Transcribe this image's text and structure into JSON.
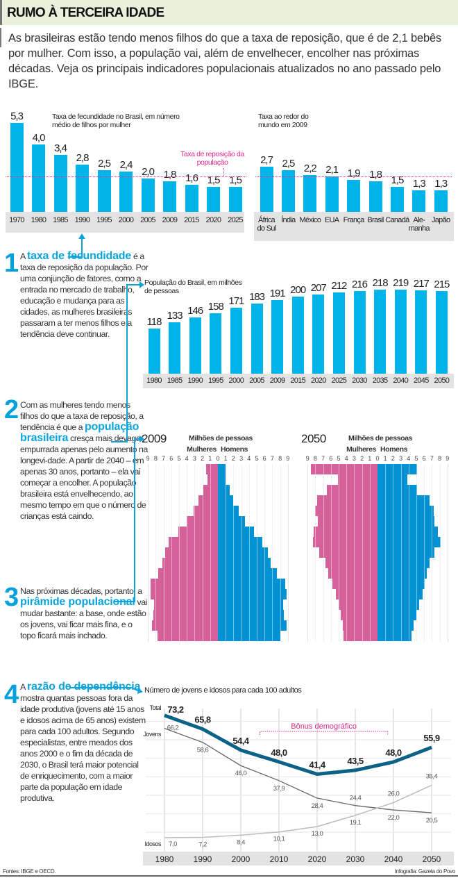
{
  "header": {
    "title": "RUMO À TERCEIRA IDADE"
  },
  "intro": "As brasileiras estão tendo menos filhos do que a taxa de reposição, que é de 2,1 bebês por mulher. Com isso, a população vai, além de envelhecer, encolher nas próximas décadas. Veja os principais indicadores populacionais atualizados no ano passado pelo IBGE.",
  "texts": [
    {
      "number": "1",
      "prefix": "A ",
      "highlight": "taxa de fecundidade",
      "rest": " é a taxa de reposição da população. Por uma conjunção de fatores, como a entrada no mercado de trabalho, educação e mudança para as cidades, as mulheres brasileiras passaram a ter menos filhos e a tendência deve continuar."
    },
    {
      "number": "2",
      "prefix": "Com as mulheres tendo menos filhos do que a taxa de reposição, a tendência é que a ",
      "highlight": "população brasileira",
      "rest": " cresça mais devagar, empurrada apenas pelo aumento na longevi-dade. A partir de 2040 – em apenas 30 anos, portanto – ela vai começar a encolher. A população brasileira está envelhecendo, ao mesmo tempo em que o número de crianças está caindo."
    },
    {
      "number": "3",
      "prefix": "Nas próximas décadas, portanto, a ",
      "highlight": "pirâmide populacional",
      "rest": " vai mudar bastante: a base, onde estão os jovens, vai ficar mais fina, e o topo ficará mais inchado."
    },
    {
      "number": "4",
      "prefix": "A ",
      "highlight": "razão de dependência",
      "rest": " mostra quantas pessoas fora da idade produtiva (jovens até 15 anos e idosos acima de 65 anos) existem para cada 100 adultos. Segundo especialistas, entre meados dos anos 2000 e o fim da década de 2030, o Brasil terá maior potencial de enriquecimento, com a maior parte da população em idade produtiva."
    }
  ],
  "footer": {
    "sources": "Fontes: IBGE e OECD.",
    "credit": "Infografia: Gazeta do Povo"
  },
  "colors": {
    "bar": "#00b3e8",
    "women": "#d4619a",
    "men": "#0092d2",
    "total": "#0b6186",
    "accent": "#e0288a"
  },
  "chart_data": [
    {
      "type": "bar",
      "title": "Taxa de fecundidade no Brasil, em número médio de filhos por mulher",
      "categories": [
        "1970",
        "1980",
        "1985",
        "1990",
        "1995",
        "2000",
        "2005",
        "2009",
        "2015",
        "2020",
        "2025"
      ],
      "values": [
        "5,3",
        "4,0",
        "3,4",
        "2,8",
        "2,5",
        "2,4",
        "2,0",
        "1,8",
        "1,6",
        "1,5",
        "1,5"
      ],
      "reference_line": {
        "value": 2.1,
        "label": "Taxa de reposição da população"
      }
    },
    {
      "type": "bar",
      "title": "Taxa ao redor do mundo em 2009",
      "categories": [
        "África do Sul",
        "Índia",
        "México",
        "EUA",
        "França",
        "Brasil",
        "Canadá",
        "Ale-manha",
        "Japão"
      ],
      "values": [
        "2,7",
        "2,5",
        "2,2",
        "2,1",
        "1,9",
        "1,8",
        "1,5",
        "1,3",
        "1,3"
      ],
      "reference_line": {
        "value": 2.1
      }
    },
    {
      "type": "bar",
      "title": "População do Brasil, em milhões de pessoas",
      "categories": [
        "1980",
        "1985",
        "1990",
        "1995",
        "2000",
        "2005",
        "2009",
        "2015",
        "2020",
        "2025",
        "2030",
        "2035",
        "2040",
        "2045",
        "2050"
      ],
      "values": [
        118,
        133,
        146,
        158,
        171,
        183,
        191,
        200,
        207,
        212,
        216,
        218,
        219,
        217,
        215
      ]
    },
    {
      "type": "bar",
      "title": "2009",
      "subtitle": "Milhões de pessoas",
      "series_labels": [
        "Mulheres",
        "Homens"
      ],
      "axis_ticks": [
        "9",
        "8",
        "7",
        "6",
        "5",
        "4",
        "3",
        "2",
        "1",
        "0",
        "1",
        "2",
        "3",
        "4",
        "5",
        "6",
        "7",
        "8",
        "9"
      ],
      "xlim": [
        -9,
        9
      ],
      "rows_top_to_bottom": "oldest to youngest",
      "women": [
        1.5,
        1.3,
        1.9,
        2.5,
        3.1,
        4.0,
        5.1,
        6.3,
        6.8,
        7.1,
        7.7,
        8.7,
        8.7,
        8.2,
        8.3,
        8.5,
        7.8
      ],
      "men": [
        1.0,
        1.0,
        1.5,
        2.0,
        2.7,
        3.5,
        4.6,
        5.7,
        6.4,
        6.8,
        7.6,
        8.7,
        8.8,
        8.4,
        8.5,
        8.8,
        8.0
      ]
    },
    {
      "type": "bar",
      "title": "2050",
      "subtitle": "Milhões de pessoas",
      "series_labels": [
        "Mulheres",
        "Homens"
      ],
      "axis_ticks": [
        "9",
        "8",
        "7",
        "6",
        "5",
        "4",
        "3",
        "2",
        "1",
        "0",
        "1",
        "2",
        "3",
        "4",
        "5",
        "6",
        "7",
        "8",
        "9"
      ],
      "xlim": [
        -9,
        9
      ],
      "rows_top_to_bottom": "oldest to youngest",
      "women": [
        8.6,
        5.1,
        6.5,
        7.8,
        8.0,
        7.7,
        8.2,
        8.3,
        7.5,
        6.7,
        6.3,
        5.8,
        5.4,
        5.0,
        4.7,
        4.5,
        4.4
      ],
      "men": [
        5.1,
        3.8,
        5.1,
        6.7,
        7.2,
        7.3,
        7.8,
        8.1,
        7.3,
        6.7,
        6.3,
        6.1,
        5.8,
        5.4,
        5.0,
        4.6,
        4.4
      ]
    },
    {
      "type": "line",
      "title": "Número de jovens e idosos para cada 100 adultos",
      "x": [
        "1980",
        "1990",
        "2000",
        "2010",
        "2020",
        "2030",
        "2040",
        "2050"
      ],
      "series": [
        {
          "name": "Total",
          "values": [
            73.2,
            65.8,
            54.4,
            48.0,
            41.4,
            43.5,
            48.0,
            55.9
          ],
          "labels": [
            "73,2",
            "65,8",
            "54,4",
            "48,0",
            "41,4",
            "43,5",
            "48,0",
            "55,9"
          ]
        },
        {
          "name": "Jovens",
          "values": [
            66.2,
            58.6,
            46.0,
            37.9,
            28.4,
            24.4,
            22.0,
            20.5
          ],
          "labels": [
            "66,2",
            "58,6",
            "46,0",
            "37,9",
            "28,4",
            "24,4",
            "22,0",
            "20,5"
          ]
        },
        {
          "name": "Idosos",
          "values": [
            7.0,
            7.2,
            8.4,
            10.1,
            13.0,
            19.1,
            26.0,
            35.4
          ],
          "labels": [
            "7,0",
            "7,2",
            "8,4",
            "10,1",
            "13,0",
            "19,1",
            "26,0",
            "35,4"
          ]
        }
      ],
      "annotation": {
        "label": "Bônus demográfico",
        "from": "2005",
        "to": "2038"
      },
      "grid": true
    }
  ]
}
